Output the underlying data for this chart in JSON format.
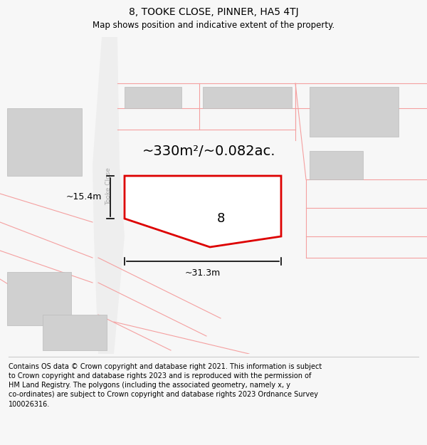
{
  "title": "8, TOOKE CLOSE, PINNER, HA5 4TJ",
  "subtitle": "Map shows position and indicative extent of the property.",
  "footer": "Contains OS data © Crown copyright and database right 2021. This information is subject\nto Crown copyright and database rights 2023 and is reproduced with the permission of\nHM Land Registry. The polygons (including the associated geometry, namely x, y\nco-ordinates) are subject to Crown copyright and database rights 2023 Ordnance Survey\n100026316.",
  "bg_color": "#f7f7f7",
  "map_bg": "#ffffff",
  "area_label": "~330m²/~0.082ac.",
  "number_label": "8",
  "width_label": "~31.3m",
  "height_label": "~15.4m",
  "road_label": "Tooke Close",
  "property_color": "#dd0000",
  "title_fontsize": 10,
  "subtitle_fontsize": 8.5,
  "footer_fontsize": 7.0,
  "pink_road_color": "#f5a0a0",
  "gray_block_color": "#d0d0d0",
  "road_fill_color": "#eeeeee"
}
